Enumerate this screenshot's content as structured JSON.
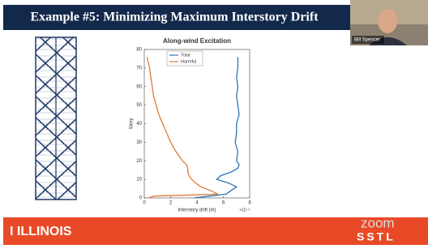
{
  "slide": {
    "title": "Example #5: Minimizing Maximum Interstory Drift",
    "footer_left": "I ILLINOIS",
    "footer_logo": "SSTL"
  },
  "video": {
    "name": "Bill Spencer",
    "brand": "zoom"
  },
  "chart_data": {
    "type": "line",
    "title": "Along-wind Excitation",
    "x_label": "Interstory drift (m)",
    "x_multiplier": "×10⁻³",
    "y_label": "Story",
    "y": [
      0,
      1,
      2,
      4,
      6,
      8,
      10,
      12,
      14,
      16,
      18,
      20,
      25,
      30,
      35,
      40,
      45,
      50,
      55,
      60,
      65,
      70,
      76
    ],
    "series": [
      {
        "name": "Total",
        "color": "#2e75b6",
        "x": [
          3.8,
          5.0,
          6.2,
          6.6,
          7.0,
          6.4,
          5.5,
          5.8,
          6.6,
          7.1,
          7.2,
          7.0,
          7.1,
          6.9,
          7.0,
          7.0,
          7.2,
          7.1,
          7.0,
          7.1,
          7.0,
          7.1,
          7.1
        ]
      },
      {
        "name": "Harmful",
        "color": "#e07b39",
        "x": [
          0.3,
          0.8,
          5.6,
          5.0,
          4.3,
          3.9,
          3.6,
          3.4,
          3.3,
          3.3,
          3.2,
          2.9,
          2.4,
          2.0,
          1.7,
          1.4,
          1.1,
          0.9,
          0.7,
          0.6,
          0.5,
          0.4,
          0.2
        ]
      }
    ],
    "xlim": [
      0,
      8
    ],
    "xticks": [
      0,
      2,
      4,
      6,
      8
    ],
    "ylim": [
      0,
      80
    ],
    "yticks": [
      0,
      10,
      20,
      30,
      40,
      50,
      60,
      70,
      80
    ],
    "legend": "top-left"
  }
}
